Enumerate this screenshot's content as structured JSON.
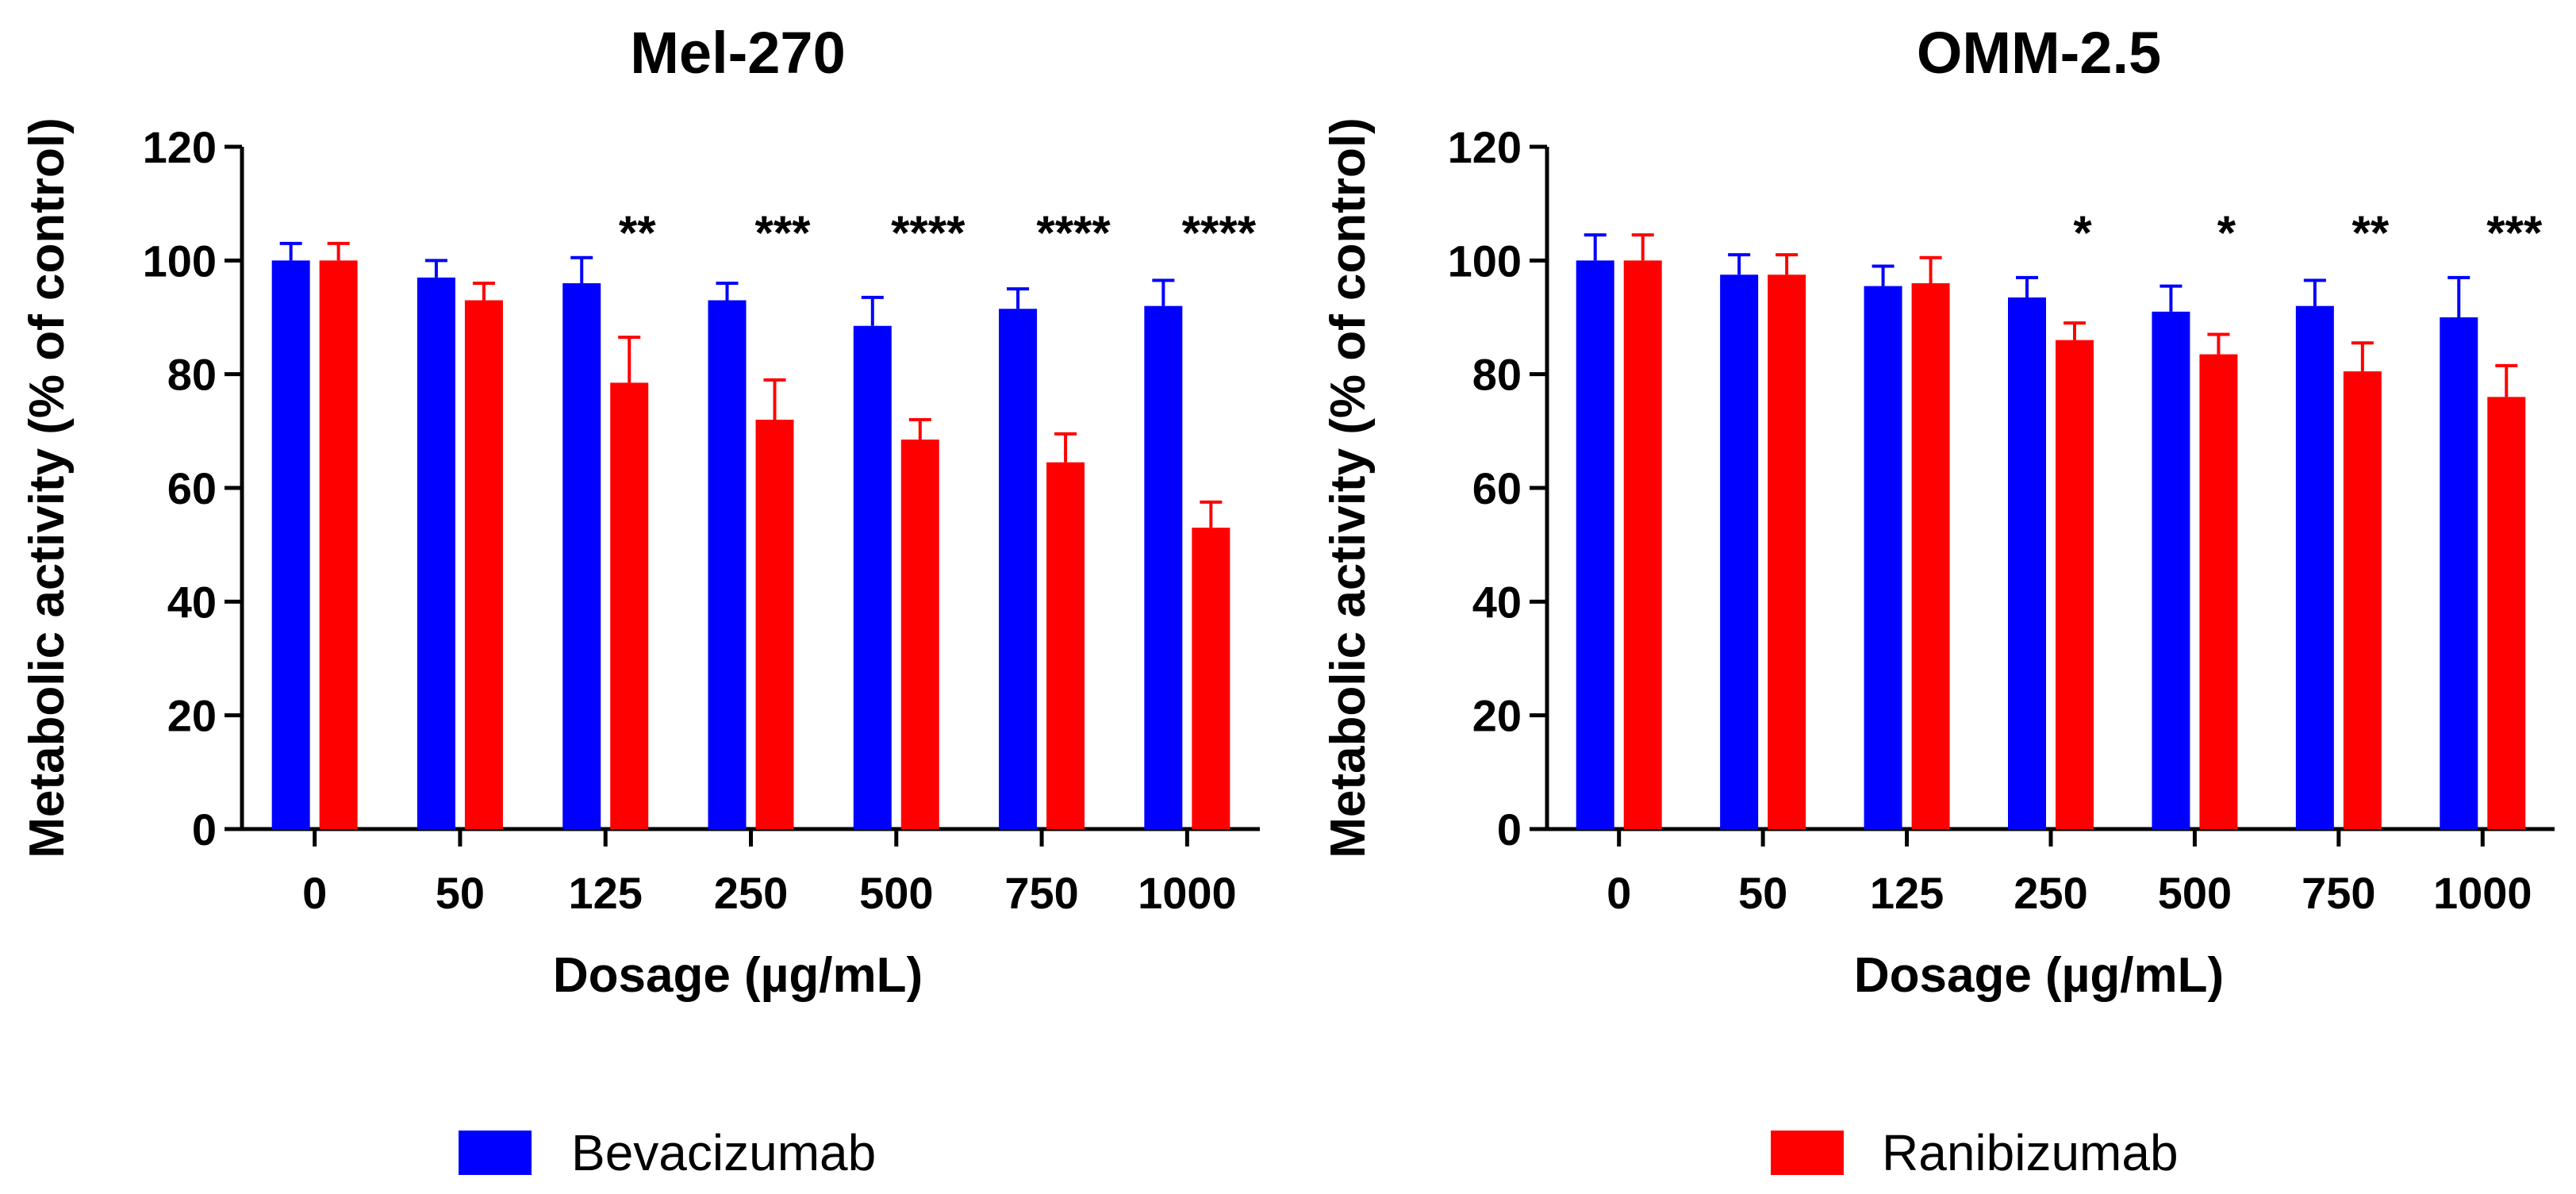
{
  "chart_data": [
    {
      "type": "bar",
      "title": "Mel-270",
      "xlabel": "Dosage (µg/mL)",
      "ylabel": "Metabolic activity (% of control)",
      "ylim": [
        0,
        120
      ],
      "yticks": [
        0,
        20,
        40,
        60,
        80,
        100,
        120
      ],
      "categories": [
        "0",
        "50",
        "125",
        "250",
        "500",
        "750",
        "1000"
      ],
      "series": [
        {
          "name": "Bevacizumab",
          "color": "#0000ff",
          "values": [
            100,
            97,
            96,
            93,
            88.5,
            91.5,
            92
          ],
          "errors": [
            3,
            3,
            4.5,
            3,
            5,
            3.5,
            4.5
          ]
        },
        {
          "name": "Ranibizumab",
          "color": "#ff0000",
          "values": [
            100,
            93,
            78.5,
            72,
            68.5,
            64.5,
            53
          ],
          "errors": [
            3,
            3,
            8,
            7,
            3.5,
            5,
            4.5
          ]
        }
      ],
      "significance": [
        "",
        "",
        "**",
        "***",
        "****",
        "****",
        "****"
      ]
    },
    {
      "type": "bar",
      "title": "OMM-2.5",
      "xlabel": "Dosage (µg/mL)",
      "ylabel": "Metabolic activity (% of control)",
      "ylim": [
        0,
        120
      ],
      "yticks": [
        0,
        20,
        40,
        60,
        80,
        100,
        120
      ],
      "categories": [
        "0",
        "50",
        "125",
        "250",
        "500",
        "750",
        "1000"
      ],
      "series": [
        {
          "name": "Bevacizumab",
          "color": "#0000ff",
          "values": [
            100,
            97.5,
            95.5,
            93.5,
            91,
            92,
            90
          ],
          "errors": [
            4.5,
            3.5,
            3.5,
            3.5,
            4.5,
            4.5,
            7
          ]
        },
        {
          "name": "Ranibizumab",
          "color": "#ff0000",
          "values": [
            100,
            97.5,
            96,
            86,
            83.5,
            80.5,
            76
          ],
          "errors": [
            4.5,
            3.5,
            4.5,
            3,
            3.5,
            5,
            5.5
          ]
        }
      ],
      "significance": [
        "",
        "",
        "",
        "*",
        "*",
        "**",
        "***"
      ]
    }
  ],
  "legend": [
    {
      "label": "Bevacizumab",
      "color": "#0000ff"
    },
    {
      "label": "Ranibizumab",
      "color": "#ff0000"
    }
  ]
}
